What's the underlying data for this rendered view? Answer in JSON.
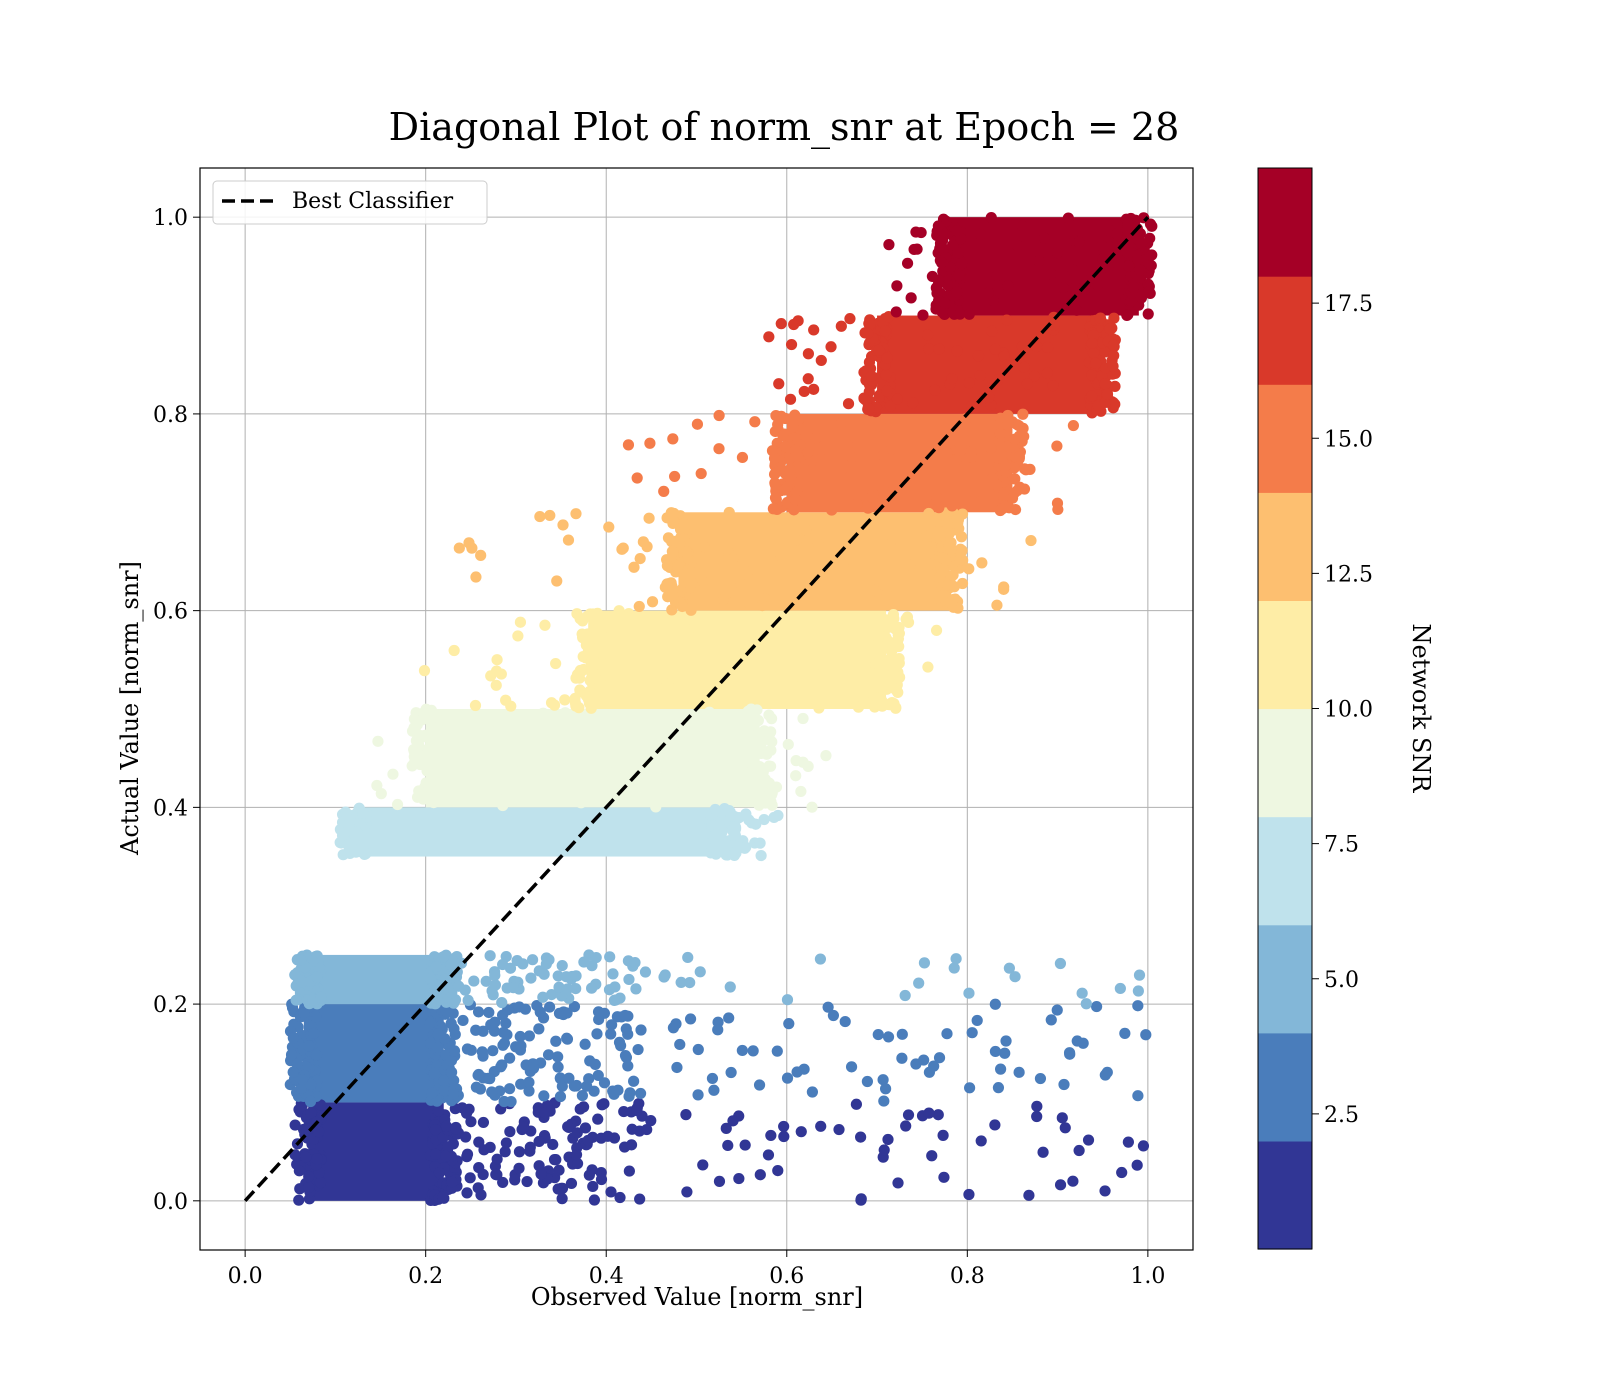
{
  "chart_data": {
    "type": "scatter",
    "title": "Diagonal Plot of norm_snr at Epoch = 28",
    "xlabel": "Observed Value [norm_snr]",
    "ylabel": "Actual Value [norm_snr]",
    "xlim": [
      -0.05,
      1.05
    ],
    "ylim": [
      -0.05,
      1.05
    ],
    "xticks": [
      "0.0",
      "0.2",
      "0.4",
      "0.6",
      "0.8",
      "1.0"
    ],
    "yticks": [
      "0.0",
      "0.2",
      "0.4",
      "0.6",
      "0.8",
      "1.0"
    ],
    "grid": true,
    "legend": {
      "placement": "top-left",
      "entries": [
        "Best Classifier"
      ]
    },
    "reference_line": {
      "name": "Best Classifier",
      "style": "dashed",
      "color": "#000000",
      "x": [
        0.0,
        1.0
      ],
      "y": [
        0.0,
        1.0
      ]
    },
    "colorbar": {
      "label": "Network SNR",
      "range": [
        0,
        20
      ],
      "ticks": [
        "2.5",
        "5.0",
        "7.5",
        "10.0",
        "12.5",
        "15.0",
        "17.5"
      ],
      "colormap": [
        "#313695",
        "#4575b4",
        "#74add1",
        "#abd9e9",
        "#e0f3f8",
        "#fee090",
        "#fdae61",
        "#f46d43",
        "#d73027",
        "#a50026"
      ],
      "displayed_colors": [
        "#313695",
        "#4a7dbb",
        "#83b7d8",
        "#bfe2ec",
        "#eef7e1",
        "#feeda6",
        "#fdbf70",
        "#f47c4a",
        "#d9392a",
        "#a50026"
      ]
    },
    "bands": [
      {
        "snr_range": [
          0,
          2
        ],
        "y_range": [
          0.0,
          0.1
        ],
        "dense_x": [
          0.07,
          0.22
        ],
        "sparse_x": [
          0.22,
          1.0
        ],
        "sparse_count": 170
      },
      {
        "snr_range": [
          2,
          4
        ],
        "y_range": [
          0.1,
          0.2
        ],
        "dense_x": [
          0.065,
          0.22
        ],
        "sparse_x": [
          0.22,
          1.0
        ],
        "sparse_count": 190
      },
      {
        "snr_range": [
          4,
          6
        ],
        "y_range": [
          0.2,
          0.25
        ],
        "dense_x": [
          0.07,
          0.22
        ],
        "sparse_x": [
          0.22,
          1.0
        ],
        "sparse_count": 90
      },
      {
        "snr_range": [
          6,
          8
        ],
        "y_range": [
          0.35,
          0.4
        ],
        "dense_x": [
          0.12,
          0.53
        ],
        "sparse_x": [
          0.53,
          0.6
        ],
        "sparse_count": 20
      },
      {
        "snr_range": [
          8,
          10
        ],
        "y_range": [
          0.4,
          0.5
        ],
        "dense_x": [
          0.2,
          0.57
        ],
        "sparse_x": [
          0.12,
          0.65
        ],
        "sparse_count": 90
      },
      {
        "snr_range": [
          10,
          12
        ],
        "y_range": [
          0.5,
          0.6
        ],
        "dense_x": [
          0.38,
          0.71
        ],
        "sparse_x": [
          0.19,
          0.78
        ],
        "sparse_count": 50
      },
      {
        "snr_range": [
          12,
          14
        ],
        "y_range": [
          0.6,
          0.7
        ],
        "dense_x": [
          0.48,
          0.78
        ],
        "sparse_x": [
          0.22,
          0.88
        ],
        "sparse_count": 60
      },
      {
        "snr_range": [
          14,
          16
        ],
        "y_range": [
          0.7,
          0.8
        ],
        "dense_x": [
          0.6,
          0.85
        ],
        "sparse_x": [
          0.42,
          0.92
        ],
        "sparse_count": 60
      },
      {
        "snr_range": [
          16,
          18
        ],
        "y_range": [
          0.8,
          0.9
        ],
        "dense_x": [
          0.7,
          0.95
        ],
        "sparse_x": [
          0.58,
          0.97
        ],
        "sparse_count": 60
      },
      {
        "snr_range": [
          18,
          20
        ],
        "y_range": [
          0.9,
          1.0
        ],
        "dense_x": [
          0.78,
          0.99
        ],
        "sparse_x": [
          0.71,
          0.99
        ],
        "sparse_count": 50
      }
    ]
  }
}
